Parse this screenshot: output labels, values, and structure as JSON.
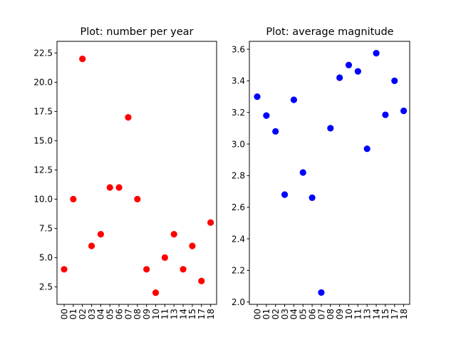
{
  "chart_data": [
    {
      "type": "scatter",
      "title": "Plot: number per year",
      "xlabel": "",
      "ylabel": "",
      "color": "#ff0000",
      "categories": [
        "00",
        "01",
        "02",
        "03",
        "04",
        "05",
        "06",
        "07",
        "08",
        "09",
        "10",
        "11",
        "13",
        "14",
        "15",
        "17",
        "18"
      ],
      "values": [
        4,
        10,
        22,
        6,
        7,
        11,
        11,
        17,
        10,
        4,
        2,
        5,
        7,
        4,
        6,
        3,
        8
      ],
      "ylim": [
        1.0,
        23.5
      ],
      "yticks": [
        2.5,
        5.0,
        7.5,
        10.0,
        12.5,
        15.0,
        17.5,
        20.0,
        22.5
      ],
      "ytick_labels": [
        "2.5",
        "5.0",
        "7.5",
        "10.0",
        "12.5",
        "15.0",
        "17.5",
        "20.0",
        "22.5"
      ],
      "grid": false,
      "legend": "none"
    },
    {
      "type": "scatter",
      "title": "Plot: average magnitude",
      "xlabel": "",
      "ylabel": "",
      "color": "#0000ff",
      "categories": [
        "00",
        "01",
        "02",
        "03",
        "04",
        "05",
        "06",
        "07",
        "08",
        "09",
        "10",
        "11",
        "13",
        "14",
        "15",
        "17",
        "18"
      ],
      "values": [
        3.3,
        3.18,
        3.08,
        2.68,
        3.28,
        2.82,
        2.66,
        2.06,
        3.1,
        3.42,
        3.5,
        3.46,
        2.97,
        3.575,
        3.185,
        3.4,
        3.21
      ],
      "ylim": [
        1.985,
        3.65
      ],
      "yticks": [
        2.0,
        2.2,
        2.4,
        2.6,
        2.8,
        3.0,
        3.2,
        3.4,
        3.6
      ],
      "ytick_labels": [
        "2.0",
        "2.2",
        "2.4",
        "2.6",
        "2.8",
        "3.0",
        "3.2",
        "3.4",
        "3.6"
      ],
      "grid": false,
      "legend": "none"
    }
  ]
}
